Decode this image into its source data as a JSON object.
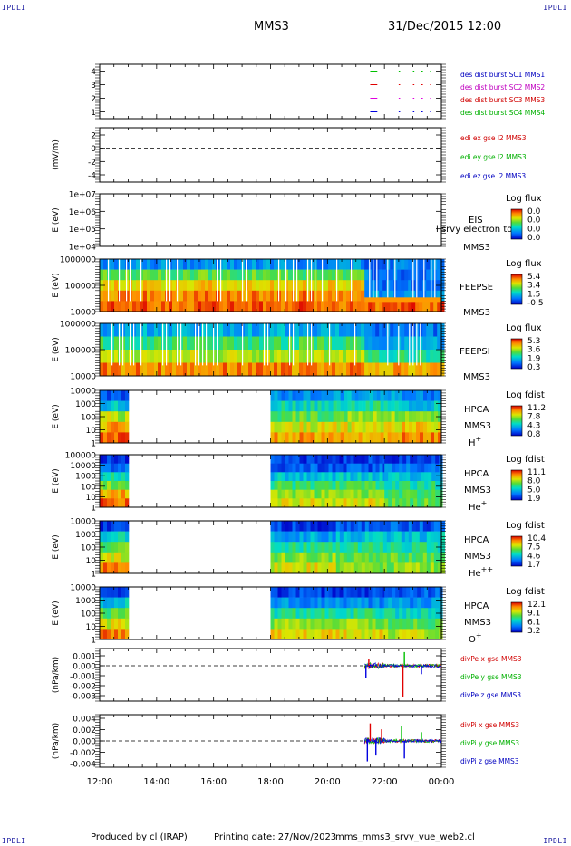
{
  "header": {
    "corner_left_top": "IPDLI",
    "corner_right_top": "IPDLI",
    "corner_left_bottom": "IPDLI",
    "corner_right_bottom": "IPDLI",
    "spacecraft": "MMS3",
    "datetime": "31/Dec/2015 12:00"
  },
  "footer": {
    "produced": "Produced by cl (IRAP)",
    "printing": "Printing date: 27/Nov/2023",
    "filename": "mms_mms3_srvy_vue_web2.cl"
  },
  "colors": {
    "mms1": "#00c000",
    "mms2": "#e00000",
    "mms3": "#e000e0",
    "mms4": "#0000e0",
    "x": "#e00000",
    "y": "#00c000",
    "z": "#0000e0",
    "label_blue": "#0000c0",
    "label_magenta": "#c000c0",
    "label_red": "#d00000",
    "label_green": "#00b000"
  },
  "chart_data": {
    "type": "heatmap",
    "x_tick_labels": [
      "12:00",
      "14:00",
      "16:00",
      "18:00",
      "20:00",
      "22:00",
      "00:00"
    ],
    "x_hours": [
      12,
      14,
      16,
      18,
      20,
      22,
      24
    ],
    "xlim": [
      12,
      24
    ],
    "panels": [
      {
        "id": "burst",
        "type": "line",
        "ylabel": "",
        "yticks": [
          "4",
          "3",
          "2",
          "1"
        ],
        "ylim": [
          0.5,
          4.5
        ],
        "legend": [
          {
            "text": "des dist burst SC1 MMS1",
            "color": "label_blue"
          },
          {
            "text": "des dist burst SC2 MMS2",
            "color": "label_magenta"
          },
          {
            "text": "des dist burst SC3 MMS3",
            "color": "label_red"
          },
          {
            "text": "des dist burst SC4 MMS4",
            "color": "label_green"
          }
        ],
        "segments": [
          {
            "level": 4,
            "color": "mms1",
            "ranges": [
              [
                21.5,
                21.75
              ],
              [
                22.5,
                22.55
              ],
              [
                23.0,
                23.05
              ],
              [
                23.3,
                23.35
              ],
              [
                23.6,
                23.65
              ]
            ]
          },
          {
            "level": 3,
            "color": "mms2",
            "ranges": [
              [
                21.5,
                21.75
              ],
              [
                22.5,
                22.55
              ],
              [
                23.0,
                23.05
              ],
              [
                23.3,
                23.35
              ],
              [
                23.6,
                23.65
              ]
            ]
          },
          {
            "level": 2,
            "color": "mms3",
            "ranges": [
              [
                21.5,
                21.75
              ],
              [
                22.5,
                22.55
              ],
              [
                23.0,
                23.05
              ],
              [
                23.3,
                23.35
              ],
              [
                23.6,
                23.65
              ]
            ]
          },
          {
            "level": 1,
            "color": "mms4",
            "ranges": [
              [
                21.5,
                21.75
              ],
              [
                22.5,
                22.55
              ],
              [
                23.0,
                23.05
              ],
              [
                23.3,
                23.35
              ],
              [
                23.6,
                23.65
              ]
            ]
          }
        ]
      },
      {
        "id": "edi",
        "type": "line",
        "ylabel": "(mV/m)",
        "yticks": [
          "2",
          "0",
          "-2",
          "-4"
        ],
        "ylim": [
          -5,
          3
        ],
        "zero_line": true,
        "legend": [
          {
            "text": "edi ex gse l2 MMS3",
            "color": "label_red"
          },
          {
            "text": "edi ey gse l2 MMS3",
            "color": "label_green"
          },
          {
            "text": "edi ez gse l2 MMS3",
            "color": "label_blue"
          }
        ]
      },
      {
        "id": "eis",
        "type": "heatmap",
        "ylabel": "E (eV)",
        "yticks": [
          "1e+07",
          "1e+06",
          "1e+05",
          "1e+04"
        ],
        "log_decades": [
          7,
          4
        ],
        "labels": [
          "EIS",
          "MMS3"
        ],
        "overlay_text": "l srvy electron to",
        "colorbar_title": "Log flux",
        "colorbar_ticks": [
          "0.0",
          "0.0",
          "0.0",
          "0.0"
        ],
        "blocks": []
      },
      {
        "id": "feeps_e",
        "type": "heatmap",
        "ylabel": "E (eV)",
        "yticks": [
          "1000000",
          "100000",
          "10000"
        ],
        "log_decades": [
          6,
          4
        ],
        "labels": [
          "FEEPSE",
          "MMS3"
        ],
        "colorbar_title": "Log flux",
        "colorbar_ticks": [
          "5.4",
          "3.4",
          "1.5",
          "-0.5"
        ],
        "blocks": [
          {
            "t0": 12.0,
            "t1": 21.3,
            "rows": [
              0.25,
              0.55,
              0.75,
              0.85,
              0.9
            ]
          },
          {
            "t0": 21.3,
            "t1": 24.0,
            "rows": [
              0.2,
              0.2,
              0.2,
              0.25,
              0.9
            ]
          }
        ]
      },
      {
        "id": "feeps_i",
        "type": "heatmap",
        "ylabel": "E (eV)",
        "yticks": [
          "1000000",
          "100000",
          "10000"
        ],
        "log_decades": [
          6,
          4
        ],
        "labels": [
          "FEEPSI",
          "MMS3"
        ],
        "colorbar_title": "Log flux",
        "colorbar_ticks": [
          "5.3",
          "3.6",
          "1.9",
          "0.3"
        ],
        "blocks": [
          {
            "t0": 12.0,
            "t1": 21.3,
            "rows": [
              0.3,
              0.5,
              0.65,
              0.85
            ]
          },
          {
            "t0": 21.3,
            "t1": 24.0,
            "rows": [
              0.2,
              0.3,
              0.45,
              0.8
            ]
          }
        ]
      },
      {
        "id": "hpca_h",
        "type": "heatmap",
        "ylabel": "E (eV)",
        "yticks": [
          "10000",
          "1000",
          "100",
          "10",
          "1"
        ],
        "log_decades": [
          4.2,
          0
        ],
        "labels": [
          "HPCA",
          "MMS3",
          "H+"
        ],
        "colorbar_title": "Log fdist",
        "colorbar_ticks": [
          "11.2",
          "7.8",
          "4.3",
          "0.8"
        ],
        "blocks": [
          {
            "t0": 12.0,
            "t1": 12.9,
            "rows": [
              0.15,
              0.35,
              0.65,
              0.8,
              0.9
            ]
          },
          {
            "t0": 18.0,
            "t1": 20.2,
            "rows": [
              0.25,
              0.4,
              0.55,
              0.7,
              0.82
            ]
          },
          {
            "t0": 20.2,
            "t1": 22.6,
            "rows": [
              0.3,
              0.45,
              0.6,
              0.7,
              0.8
            ]
          },
          {
            "t0": 22.6,
            "t1": 24.0,
            "rows": [
              0.2,
              0.35,
              0.6,
              0.75,
              0.85
            ]
          }
        ]
      },
      {
        "id": "hpca_he",
        "type": "heatmap",
        "ylabel": "E (eV)",
        "yticks": [
          "100000",
          "10000",
          "1000",
          "100",
          "10",
          "1"
        ],
        "log_decades": [
          5,
          0
        ],
        "labels": [
          "HPCA",
          "MMS3",
          "He+"
        ],
        "colorbar_title": "Log fdist",
        "colorbar_ticks": [
          "11.1",
          "8.0",
          "5.0",
          "1.9"
        ],
        "blocks": [
          {
            "t0": 12.0,
            "t1": 12.9,
            "rows": [
              0.1,
              0.2,
              0.4,
              0.6,
              0.8,
              0.9
            ]
          },
          {
            "t0": 18.0,
            "t1": 22.0,
            "rows": [
              0.1,
              0.15,
              0.35,
              0.5,
              0.6,
              0.7
            ]
          },
          {
            "t0": 22.0,
            "t1": 24.0,
            "rows": [
              0.1,
              0.2,
              0.35,
              0.45,
              0.5,
              0.55
            ]
          }
        ]
      },
      {
        "id": "hpca_hepp",
        "type": "heatmap",
        "ylabel": "E (eV)",
        "yticks": [
          "10000",
          "1000",
          "100",
          "10",
          "1"
        ],
        "log_decades": [
          4.2,
          0
        ],
        "labels": [
          "HPCA",
          "MMS3",
          "He++"
        ],
        "colorbar_title": "Log fdist",
        "colorbar_ticks": [
          "10.4",
          "7.5",
          "4.6",
          "1.7"
        ],
        "blocks": [
          {
            "t0": 12.0,
            "t1": 12.9,
            "rows": [
              0.1,
              0.4,
              0.55,
              0.7,
              0.85
            ]
          },
          {
            "t0": 18.0,
            "t1": 20.3,
            "rows": [
              0.1,
              0.3,
              0.45,
              0.6,
              0.7
            ]
          },
          {
            "t0": 20.3,
            "t1": 24.0,
            "rows": [
              0.15,
              0.35,
              0.45,
              0.55,
              0.6
            ]
          }
        ]
      },
      {
        "id": "hpca_o",
        "type": "heatmap",
        "ylabel": "E (eV)",
        "yticks": [
          "10000",
          "1000",
          "100",
          "10",
          "1"
        ],
        "log_decades": [
          4.2,
          0
        ],
        "labels": [
          "HPCA",
          "MMS3",
          "O+"
        ],
        "colorbar_title": "Log fdist",
        "colorbar_ticks": [
          "12.1",
          "9.1",
          "6.1",
          "3.2"
        ],
        "blocks": [
          {
            "t0": 12.0,
            "t1": 12.9,
            "rows": [
              0.1,
              0.35,
              0.55,
              0.7,
              0.85
            ]
          },
          {
            "t0": 18.0,
            "t1": 22.0,
            "rows": [
              0.1,
              0.25,
              0.45,
              0.6,
              0.72
            ]
          },
          {
            "t0": 22.0,
            "t1": 24.0,
            "rows": [
              0.15,
              0.25,
              0.4,
              0.55,
              0.65
            ]
          }
        ]
      },
      {
        "id": "divpe",
        "type": "line",
        "ylabel": "(nPa/km)",
        "yticks": [
          "0.001",
          "0.000",
          "-0.001",
          "-0.002",
          "-0.003"
        ],
        "ylim": [
          -0.0035,
          0.0015
        ],
        "zero_line": true,
        "legend": [
          {
            "text": "divPe x gse MMS3",
            "color": "label_red"
          },
          {
            "text": "divPe y gse MMS3",
            "color": "label_green"
          },
          {
            "text": "divPe z gse MMS3",
            "color": "label_blue"
          }
        ],
        "spikes": [
          {
            "t": 21.35,
            "amp": -0.0012,
            "color": "z"
          },
          {
            "t": 21.45,
            "amp": 0.0006,
            "color": "x"
          },
          {
            "t": 22.65,
            "amp": -0.003,
            "color": "x"
          },
          {
            "t": 22.7,
            "amp": 0.0013,
            "color": "y"
          },
          {
            "t": 23.3,
            "amp": -0.0008,
            "color": "z"
          }
        ]
      },
      {
        "id": "divpi",
        "type": "line",
        "ylabel": "(nPa/km)",
        "yticks": [
          "0.004",
          "0.002",
          "0.000",
          "-0.002",
          "-0.004"
        ],
        "ylim": [
          -0.0045,
          0.0045
        ],
        "zero_line": true,
        "legend": [
          {
            "text": "divPi x gse MMS3",
            "color": "label_red"
          },
          {
            "text": "divPi y gse MMS3",
            "color": "label_green"
          },
          {
            "text": "divPi z gse MMS3",
            "color": "label_blue"
          }
        ],
        "spikes": [
          {
            "t": 21.4,
            "amp": -0.0035,
            "color": "z"
          },
          {
            "t": 21.5,
            "amp": 0.003,
            "color": "x"
          },
          {
            "t": 21.7,
            "amp": -0.0025,
            "color": "z"
          },
          {
            "t": 21.9,
            "amp": 0.002,
            "color": "x"
          },
          {
            "t": 22.6,
            "amp": 0.0025,
            "color": "y"
          },
          {
            "t": 22.7,
            "amp": -0.003,
            "color": "z"
          },
          {
            "t": 23.3,
            "amp": 0.0015,
            "color": "y"
          }
        ]
      }
    ]
  }
}
